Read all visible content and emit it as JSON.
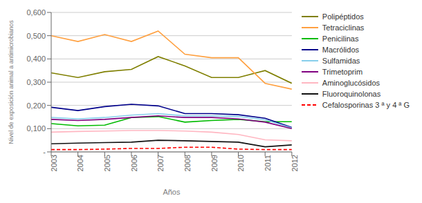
{
  "chart_data": {
    "type": "line",
    "x": [
      2003,
      2004,
      2005,
      2006,
      2007,
      2008,
      2009,
      2010,
      2011,
      2012
    ],
    "xlabel": "Años",
    "ylabel": "Nivel de exposición animal a antimicrobianos",
    "xlim": [
      2003,
      2012
    ],
    "xticks": [
      2003,
      2004,
      2005,
      2006,
      2007,
      2008,
      2009,
      2010,
      2011,
      2012
    ],
    "ylim": [
      0,
      0.6
    ],
    "yticks": [
      {
        "value": 0,
        "label": "-"
      },
      {
        "value": 0.1,
        "label": "0,100"
      },
      {
        "value": 0.2,
        "label": "0,200"
      },
      {
        "value": 0.3,
        "label": "0,300"
      },
      {
        "value": 0.4,
        "label": "0,400"
      },
      {
        "value": 0.5,
        "label": "0,500"
      },
      {
        "value": 0.6,
        "label": "0,600"
      }
    ],
    "grid": true,
    "legend": "right",
    "series": [
      {
        "name": "Polipéptidos",
        "color": "#7f7f00",
        "line_style": "solid",
        "values": [
          0.34,
          0.32,
          0.345,
          0.355,
          0.41,
          0.37,
          0.32,
          0.32,
          0.35,
          0.295
        ]
      },
      {
        "name": "Tetraciclinas",
        "color": "#FFA040",
        "line_style": "solid",
        "values": [
          0.5,
          0.475,
          0.505,
          0.475,
          0.52,
          0.42,
          0.405,
          0.405,
          0.295,
          0.27
        ]
      },
      {
        "name": "Penicilinas",
        "color": "#00BB00",
        "line_style": "solid",
        "values": [
          0.122,
          0.112,
          0.115,
          0.148,
          0.152,
          0.128,
          0.135,
          0.14,
          0.13,
          0.13
        ]
      },
      {
        "name": "Macrólidos",
        "color": "#00008B",
        "line_style": "solid",
        "values": [
          0.192,
          0.178,
          0.195,
          0.205,
          0.198,
          0.165,
          0.165,
          0.16,
          0.145,
          0.105
        ]
      },
      {
        "name": "Sulfamidas",
        "color": "#87CEEB",
        "line_style": "solid",
        "values": [
          0.148,
          0.142,
          0.148,
          0.158,
          0.165,
          0.155,
          0.155,
          0.152,
          0.138,
          0.103
        ]
      },
      {
        "name": "Trimetoprim",
        "color": "#800080",
        "line_style": "solid",
        "values": [
          0.14,
          0.135,
          0.14,
          0.148,
          0.155,
          0.148,
          0.148,
          0.142,
          0.128,
          0.1
        ]
      },
      {
        "name": "Aminoglucósidos",
        "color": "#FFB6C1",
        "line_style": "solid",
        "values": [
          0.085,
          0.088,
          0.09,
          0.092,
          0.092,
          0.09,
          0.085,
          0.075,
          0.052,
          0.048
        ]
      },
      {
        "name": "Fluoroquinolonas",
        "color": "#111111",
        "line_style": "solid",
        "values": [
          0.035,
          0.038,
          0.04,
          0.042,
          0.05,
          0.048,
          0.045,
          0.042,
          0.022,
          0.03
        ]
      },
      {
        "name": "Cefalosporinas 3 ª y 4 ª G",
        "color": "#FF0000",
        "line_style": "dashed",
        "values": [
          0.01,
          0.01,
          0.012,
          0.015,
          0.015,
          0.02,
          0.02,
          0.012,
          0.01,
          0.01
        ]
      }
    ]
  }
}
